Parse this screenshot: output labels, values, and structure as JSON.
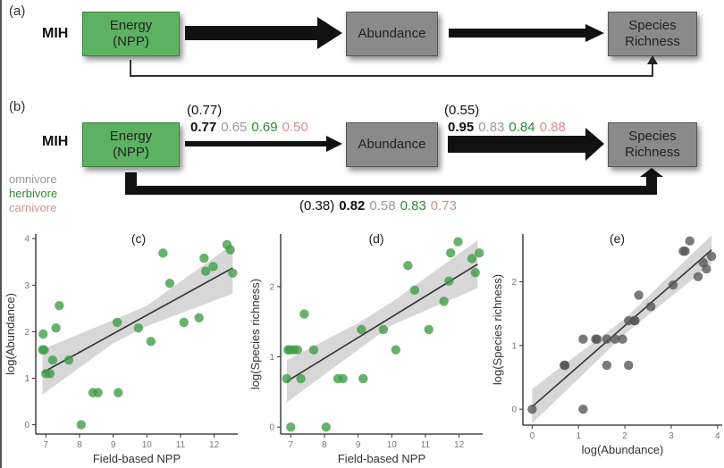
{
  "panel_a": {
    "label": "(a)",
    "model": "MIH",
    "nodes": {
      "energy": [
        "Energy",
        "(NPP)"
      ],
      "abundance": "Abundance",
      "richness": [
        "Species",
        "Richness"
      ]
    }
  },
  "panel_b": {
    "label": "(b)",
    "model": "MIH",
    "nodes": {
      "energy": [
        "Energy",
        "(NPP)"
      ],
      "abundance": "Abundance",
      "richness": [
        "Species",
        "Richness"
      ]
    },
    "paths": {
      "energy_to_abundance": {
        "paren": "(0.77)",
        "all": "0.77",
        "omnivore": "0.65",
        "herbivore": "0.69",
        "carnivore": "0.50"
      },
      "abundance_to_richness": {
        "paren": "(0.55)",
        "all": "0.95",
        "omnivore": "0.83",
        "herbivore": "0.84",
        "carnivore": "0.88"
      },
      "energy_to_richness": {
        "paren": "(0.38)",
        "all": "0.82",
        "omnivore": "0.58",
        "herbivore": "0.83",
        "carnivore": "0.73"
      }
    },
    "legend": [
      {
        "label": "omnivore",
        "color": "#9a9a9a"
      },
      {
        "label": "herbivore",
        "color": "#2f8a35"
      },
      {
        "label": "carnivore",
        "color": "#d09090"
      }
    ]
  },
  "colors": {
    "energy_box": "#5cb261",
    "grey_box": "#8a8a8a",
    "green_points": "#3f9b45",
    "grey_points": "#555555",
    "ci_band": "#d3d3d3",
    "fit_line": "#333333"
  },
  "chart_data": [
    {
      "id": "c",
      "type": "scatter",
      "title": "(c)",
      "xlabel": "Field-based NPP",
      "ylabel": "log(Abundance)",
      "xlim": [
        6.7,
        12.7
      ],
      "ylim": [
        -0.2,
        4.1
      ],
      "xticks": [
        7,
        8,
        9,
        10,
        11,
        12
      ],
      "yticks": [
        0,
        1,
        2,
        3,
        4
      ],
      "grid": false,
      "point_color": "green",
      "points": [
        [
          6.9,
          1.61
        ],
        [
          6.95,
          1.61
        ],
        [
          6.92,
          1.95
        ],
        [
          7.0,
          1.1
        ],
        [
          7.12,
          1.1
        ],
        [
          7.2,
          1.39
        ],
        [
          7.3,
          2.08
        ],
        [
          7.4,
          2.56
        ],
        [
          7.68,
          1.39
        ],
        [
          8.05,
          0.0
        ],
        [
          8.4,
          0.69
        ],
        [
          8.55,
          0.69
        ],
        [
          9.12,
          2.2
        ],
        [
          9.15,
          0.69
        ],
        [
          9.75,
          2.08
        ],
        [
          10.12,
          1.79
        ],
        [
          10.48,
          3.69
        ],
        [
          10.68,
          3.04
        ],
        [
          11.1,
          2.2
        ],
        [
          11.55,
          2.3
        ],
        [
          11.7,
          3.58
        ],
        [
          11.75,
          3.3
        ],
        [
          11.97,
          3.4
        ],
        [
          12.38,
          3.87
        ],
        [
          12.48,
          3.76
        ],
        [
          12.55,
          3.26
        ]
      ],
      "fit": {
        "x": [
          6.9,
          12.55
        ],
        "y": [
          1.12,
          3.37
        ]
      },
      "ci": {
        "x": [
          6.9,
          9.0,
          10.0,
          12.55
        ],
        "lower": [
          0.65,
          1.75,
          2.12,
          2.82
        ],
        "upper": [
          1.62,
          2.25,
          2.56,
          3.88
        ]
      }
    },
    {
      "id": "d",
      "type": "scatter",
      "title": "(d)",
      "xlabel": "Field-based NPP",
      "ylabel": "log(Species richness)",
      "xlim": [
        6.7,
        12.7
      ],
      "ylim": [
        -0.1,
        2.75
      ],
      "xticks": [
        7,
        8,
        9,
        10,
        11,
        12
      ],
      "yticks": [
        0,
        1,
        2
      ],
      "grid": false,
      "point_color": "green",
      "points": [
        [
          6.88,
          0.69
        ],
        [
          6.92,
          1.1
        ],
        [
          6.97,
          1.1
        ],
        [
          7.0,
          0.0
        ],
        [
          7.1,
          1.1
        ],
        [
          7.2,
          1.1
        ],
        [
          7.3,
          0.69
        ],
        [
          7.4,
          1.61
        ],
        [
          7.68,
          1.1
        ],
        [
          8.05,
          0.0
        ],
        [
          8.4,
          0.69
        ],
        [
          8.55,
          0.69
        ],
        [
          9.1,
          1.39
        ],
        [
          9.15,
          0.69
        ],
        [
          9.75,
          1.39
        ],
        [
          10.12,
          1.1
        ],
        [
          10.48,
          2.3
        ],
        [
          10.68,
          1.95
        ],
        [
          11.1,
          1.39
        ],
        [
          11.55,
          1.79
        ],
        [
          11.7,
          2.08
        ],
        [
          11.75,
          2.48
        ],
        [
          11.97,
          2.64
        ],
        [
          12.38,
          2.4
        ],
        [
          12.48,
          2.2
        ],
        [
          12.6,
          2.48
        ]
      ],
      "fit": {
        "x": [
          6.88,
          12.55
        ],
        "y": [
          0.65,
          2.32
        ]
      },
      "ci": {
        "x": [
          6.88,
          9.0,
          10.0,
          12.55
        ],
        "lower": [
          0.35,
          1.1,
          1.45,
          1.98
        ],
        "upper": [
          0.95,
          1.48,
          1.78,
          2.66
        ]
      }
    },
    {
      "id": "e",
      "type": "scatter",
      "title": "(e)",
      "xlabel": "log(Abundance)",
      "ylabel": "log(Species richness)",
      "xlim": [
        -0.2,
        4.1
      ],
      "ylim": [
        -0.25,
        2.75
      ],
      "xticks": [
        0,
        1,
        2,
        3,
        4
      ],
      "yticks": [
        0,
        1,
        2
      ],
      "grid": false,
      "point_color": "grey",
      "points": [
        [
          0.0,
          0.0
        ],
        [
          0.69,
          0.69
        ],
        [
          0.71,
          0.69
        ],
        [
          1.1,
          1.1
        ],
        [
          1.1,
          0.0
        ],
        [
          1.37,
          1.1
        ],
        [
          1.4,
          1.1
        ],
        [
          1.61,
          1.1
        ],
        [
          1.61,
          0.69
        ],
        [
          1.79,
          1.1
        ],
        [
          1.95,
          1.1
        ],
        [
          2.08,
          1.39
        ],
        [
          2.08,
          0.69
        ],
        [
          2.2,
          1.39
        ],
        [
          2.22,
          1.39
        ],
        [
          2.3,
          1.79
        ],
        [
          2.56,
          1.61
        ],
        [
          3.04,
          1.95
        ],
        [
          3.26,
          2.48
        ],
        [
          3.3,
          2.48
        ],
        [
          3.4,
          2.64
        ],
        [
          3.58,
          2.08
        ],
        [
          3.69,
          2.3
        ],
        [
          3.76,
          2.2
        ],
        [
          3.87,
          2.4
        ]
      ],
      "fit": {
        "x": [
          0.0,
          3.87
        ],
        "y": [
          0.04,
          2.5
        ]
      },
      "ci": {
        "x": [
          0.0,
          2.0,
          3.87
        ],
        "lower": [
          -0.22,
          1.18,
          2.28
        ],
        "upper": [
          0.32,
          1.42,
          2.73
        ]
      }
    }
  ]
}
